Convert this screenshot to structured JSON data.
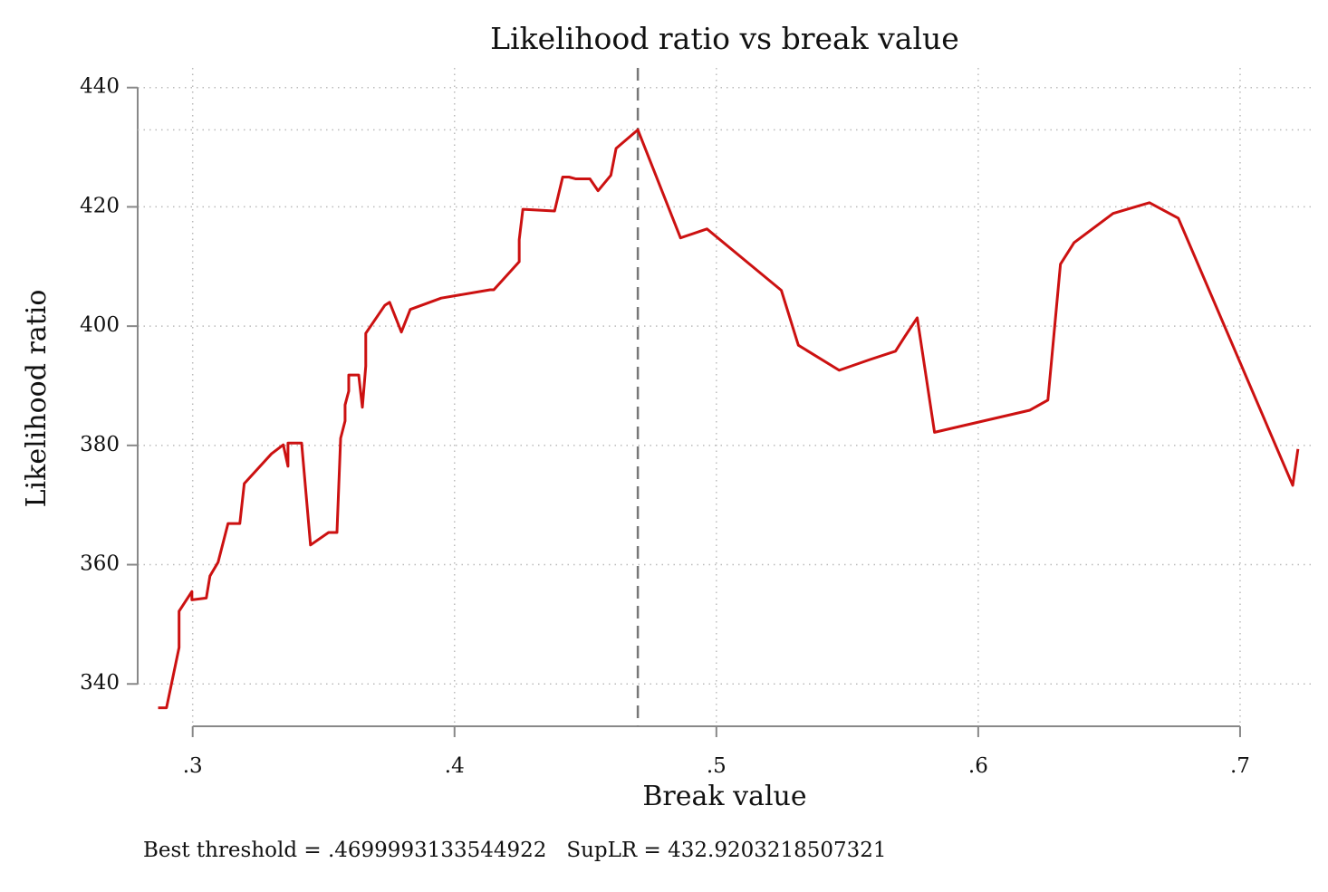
{
  "chart_data": {
    "type": "line",
    "title": "Likelihood ratio vs break value",
    "xlabel": "Break value",
    "ylabel": "Likelihood ratio",
    "note": "Best threshold = .4699993133544922   SupLR = 432.9203218507321",
    "x": [
      0.2868,
      0.29,
      0.2948,
      0.2948,
      0.2997,
      0.2997,
      0.3052,
      0.3066,
      0.3097,
      0.3135,
      0.318,
      0.3197,
      0.3301,
      0.3346,
      0.3364,
      0.3364,
      0.3416,
      0.345,
      0.3519,
      0.3551,
      0.3565,
      0.3582,
      0.3582,
      0.3596,
      0.3596,
      0.3634,
      0.3648,
      0.3661,
      0.3661,
      0.3734,
      0.3752,
      0.3797,
      0.3831,
      0.3949,
      0.4136,
      0.415,
      0.4247,
      0.4247,
      0.4261,
      0.4382,
      0.4413,
      0.4437,
      0.4462,
      0.4517,
      0.4548,
      0.4597,
      0.4617,
      0.47,
      0.4863,
      0.4964,
      0.5248,
      0.5313,
      0.5469,
      0.5587,
      0.5684,
      0.5719,
      0.5767,
      0.5833,
      0.6197,
      0.6266,
      0.6314,
      0.6366,
      0.6515,
      0.6654,
      0.6764,
      0.7201,
      0.7221
    ],
    "series": [
      {
        "name": "Likelihood ratio",
        "color": "#cc1111",
        "values": [
          336.0,
          336.0,
          346.1,
          352.2,
          355.5,
          354.1,
          354.4,
          358.1,
          360.4,
          366.9,
          366.9,
          373.6,
          378.6,
          380.1,
          376.5,
          380.4,
          380.4,
          363.3,
          365.4,
          365.4,
          381.2,
          384.1,
          386.8,
          389.1,
          391.8,
          391.8,
          386.4,
          393.3,
          398.8,
          403.5,
          404.0,
          399.0,
          402.8,
          404.7,
          406.1,
          406.1,
          410.8,
          414.5,
          419.6,
          419.3,
          425.0,
          425.0,
          424.7,
          424.7,
          422.7,
          425.3,
          429.8,
          432.92,
          414.8,
          416.3,
          406.0,
          396.8,
          392.6,
          394.4,
          395.8,
          398.2,
          401.4,
          382.2,
          385.9,
          387.6,
          410.4,
          414.0,
          418.9,
          420.7,
          418.1,
          373.3,
          379.4
        ]
      }
    ],
    "xline": 0.47,
    "yline": 432.92,
    "xlim": [
      0.279,
      0.727
    ],
    "ylim": [
      332.9,
      443.3
    ],
    "xticks": [
      {
        "value": 0.3,
        "label": ".3"
      },
      {
        "value": 0.4,
        "label": ".4"
      },
      {
        "value": 0.5,
        "label": ".5"
      },
      {
        "value": 0.6,
        "label": ".6"
      },
      {
        "value": 0.7,
        "label": ".7"
      }
    ],
    "yticks": [
      340,
      360,
      380,
      400,
      420,
      440
    ],
    "grid": true
  }
}
